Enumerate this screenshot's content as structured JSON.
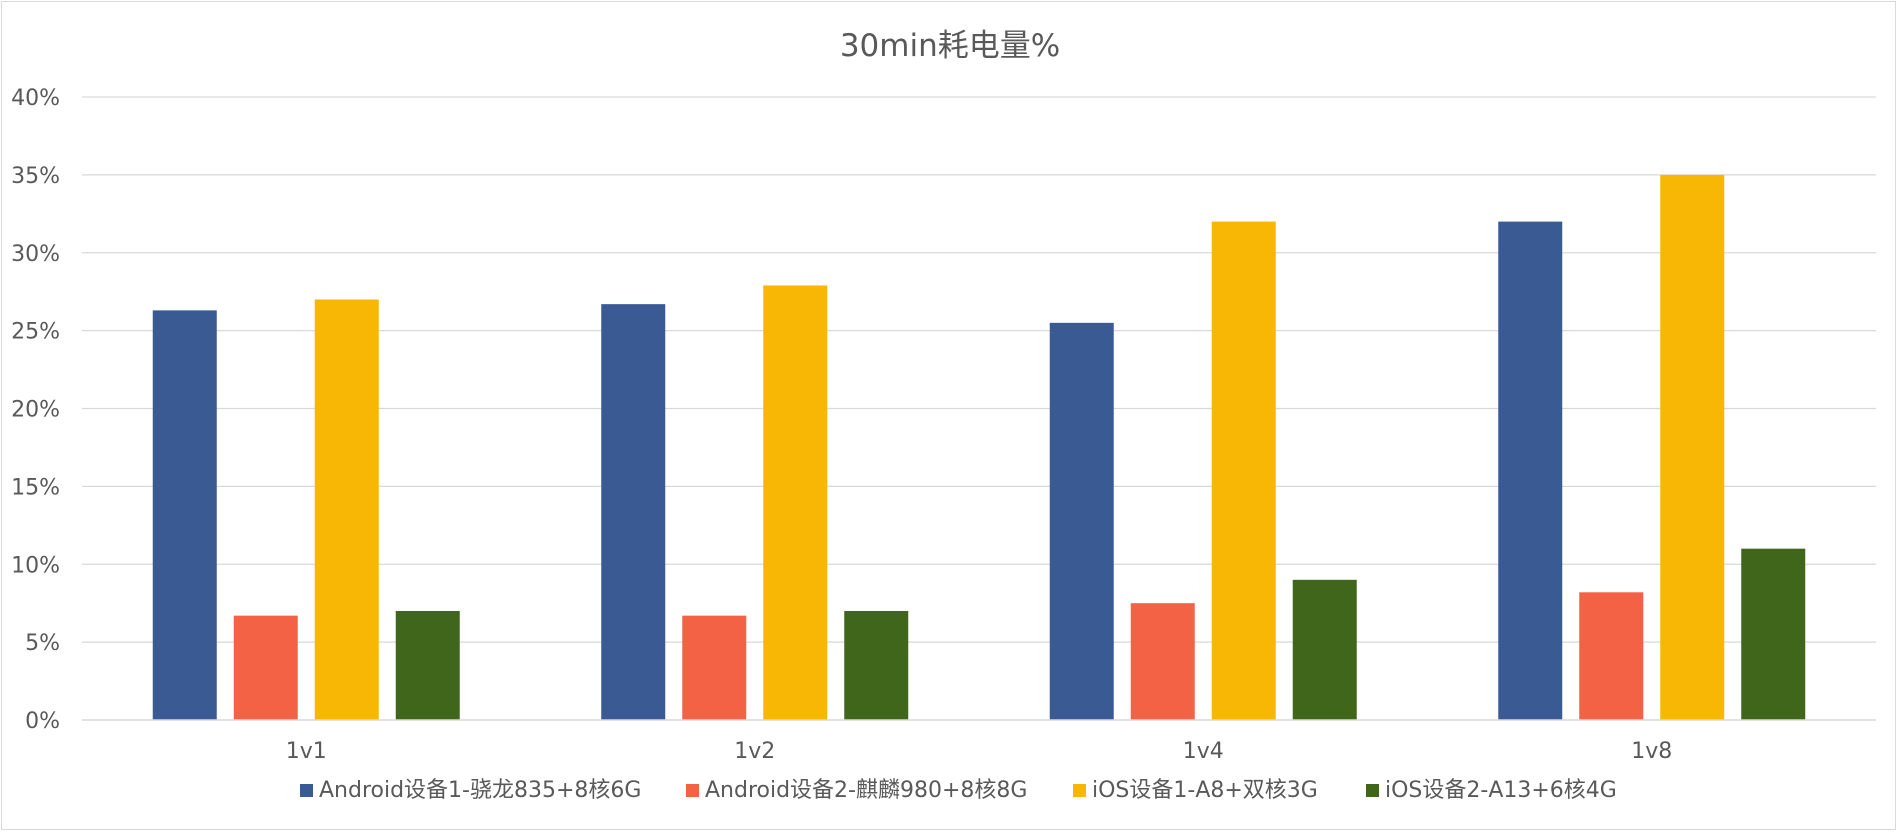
{
  "chart_data": {
    "type": "bar",
    "title": "30min耗电量%",
    "xlabel": "",
    "ylabel": "",
    "categories": [
      "1v1",
      "1v2",
      "1v4",
      "1v8"
    ],
    "ylim": [
      0,
      40
    ],
    "yticks": [
      0,
      5,
      10,
      15,
      20,
      25,
      30,
      35,
      40
    ],
    "ytick_labels": [
      "0%",
      "5%",
      "10%",
      "15%",
      "20%",
      "25%",
      "30%",
      "35%",
      "40%"
    ],
    "grid": true,
    "legend_position": "bottom",
    "series": [
      {
        "name": "Android设备1-骁龙835+8核6G",
        "color": "#3a5a93",
        "values": [
          26.3,
          26.7,
          25.5,
          32.0
        ]
      },
      {
        "name": "Android设备2-麒麟980+8核8G",
        "color": "#f46245",
        "values": [
          6.7,
          6.7,
          7.5,
          8.2
        ]
      },
      {
        "name": "iOS设备1-A8+双核3G",
        "color": "#f8b705",
        "values": [
          27.0,
          27.9,
          32.0,
          35.0
        ]
      },
      {
        "name": "iOS设备2-A13+6核4G",
        "color": "#3f661b",
        "values": [
          7.0,
          7.0,
          9.0,
          11.0
        ]
      }
    ]
  }
}
